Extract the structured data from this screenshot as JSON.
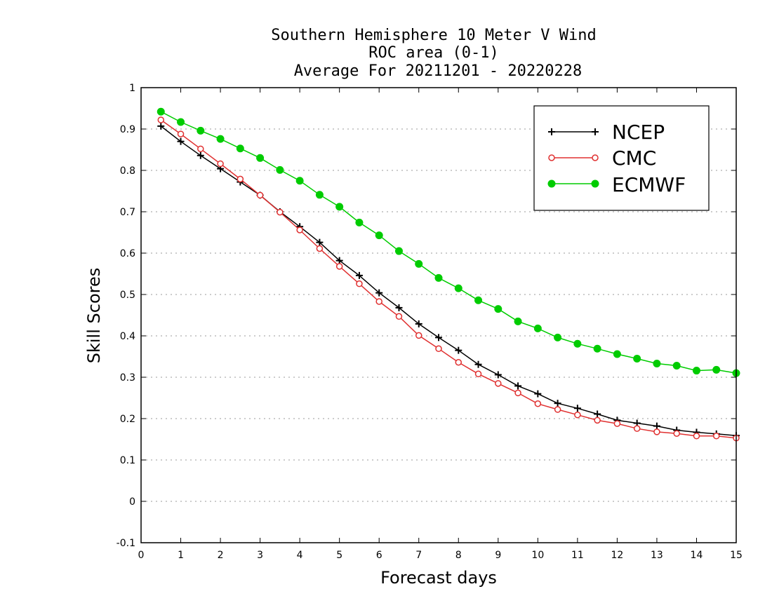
{
  "chart_data": {
    "type": "line",
    "title": "Southern Hemisphere 10 Meter V Wind",
    "subtitle": "ROC area (0-1)",
    "period": "Average For 20211201 - 20220228",
    "xlabel": "Forecast days",
    "ylabel": "Skill Scores",
    "xlim": [
      0,
      15
    ],
    "ylim": [
      -0.1,
      1
    ],
    "x_ticks": [
      "0",
      "1",
      "2",
      "3",
      "4",
      "5",
      "6",
      "7",
      "8",
      "9",
      "10",
      "11",
      "12",
      "13",
      "14",
      "15"
    ],
    "y_ticks": [
      "-0.1",
      "0",
      "0.1",
      "0.2",
      "0.3",
      "0.4",
      "0.5",
      "0.6",
      "0.7",
      "0.8",
      "0.9",
      "1"
    ],
    "grid": "horizontal dotted",
    "legend_position": "top-right",
    "x": [
      0.5,
      1,
      1.5,
      2,
      2.5,
      3,
      3.5,
      4,
      4.5,
      5,
      5.5,
      6,
      6.5,
      7,
      7.5,
      8,
      8.5,
      9,
      9.5,
      10,
      10.5,
      11,
      11.5,
      12,
      12.5,
      13,
      13.5,
      14,
      14.5,
      15
    ],
    "series": [
      {
        "name": "NCEP",
        "color": "#000000",
        "marker": "plus",
        "values": [
          0.907,
          0.87,
          0.836,
          0.804,
          0.772,
          0.74,
          0.7,
          0.664,
          0.626,
          0.582,
          0.546,
          0.504,
          0.468,
          0.429,
          0.396,
          0.365,
          0.331,
          0.306,
          0.279,
          0.26,
          0.237,
          0.225,
          0.211,
          0.196,
          0.189,
          0.182,
          0.172,
          0.167,
          0.163,
          0.159
        ]
      },
      {
        "name": "CMC",
        "color": "#e03030",
        "marker": "open-circle",
        "values": [
          0.922,
          0.888,
          0.852,
          0.816,
          0.779,
          0.74,
          0.699,
          0.656,
          0.611,
          0.568,
          0.526,
          0.483,
          0.447,
          0.401,
          0.369,
          0.336,
          0.308,
          0.285,
          0.262,
          0.236,
          0.222,
          0.209,
          0.196,
          0.188,
          0.176,
          0.168,
          0.164,
          0.158,
          0.158,
          0.153
        ]
      },
      {
        "name": "ECMWF",
        "color": "#00cc00",
        "marker": "filled-circle",
        "values": [
          0.942,
          0.917,
          0.896,
          0.876,
          0.853,
          0.83,
          0.801,
          0.775,
          0.741,
          0.712,
          0.674,
          0.643,
          0.605,
          0.574,
          0.54,
          0.515,
          0.486,
          0.465,
          0.435,
          0.418,
          0.396,
          0.381,
          0.369,
          0.356,
          0.345,
          0.333,
          0.328,
          0.316,
          0.318,
          0.31
        ]
      }
    ]
  }
}
